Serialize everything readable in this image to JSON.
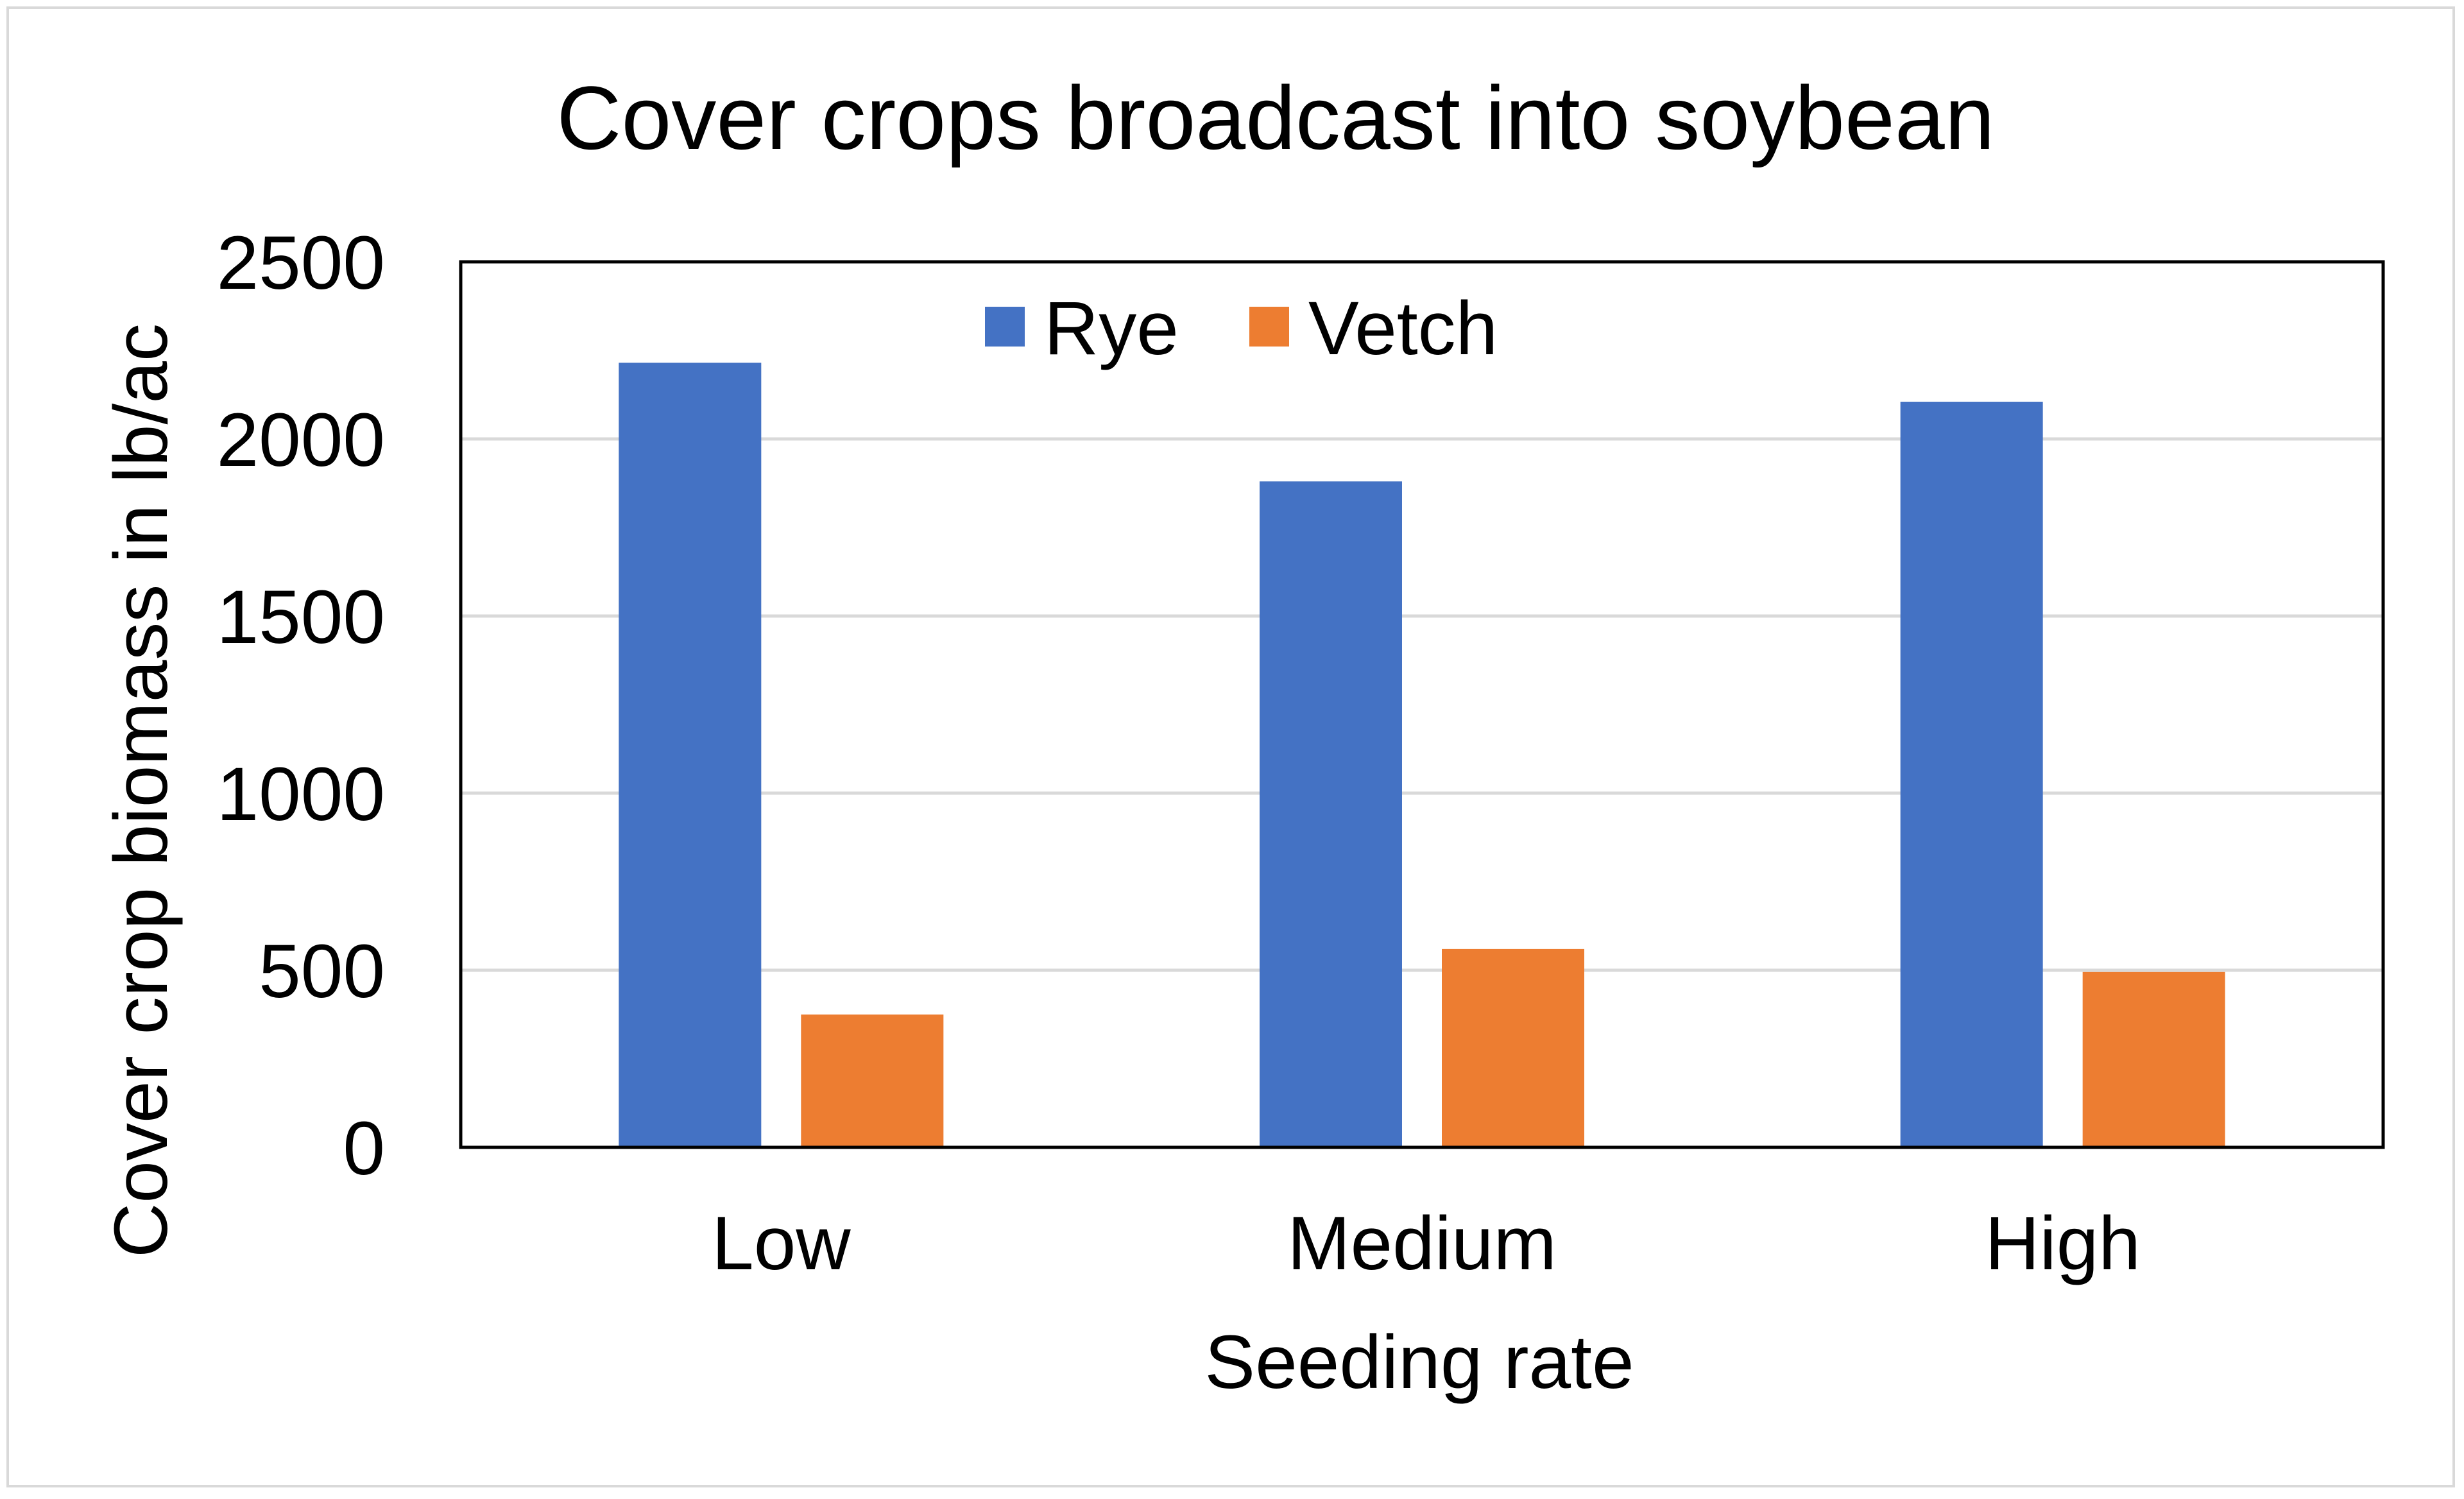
{
  "chart_data": {
    "type": "bar",
    "title": "Cover crops broadcast into soybean",
    "xlabel": "Seeding rate",
    "ylabel": "Cover crop biomass in lb/ac",
    "categories": [
      "Low",
      "Medium",
      "High"
    ],
    "series": [
      {
        "name": "Rye",
        "color": "#4472c4",
        "values": [
          2215,
          1880,
          2105
        ]
      },
      {
        "name": "Vetch",
        "color": "#ed7d31",
        "values": [
          375,
          560,
          495
        ]
      }
    ],
    "ylim": [
      0,
      2500
    ],
    "yticks": [
      "0",
      "500",
      "1000",
      "1500",
      "2000",
      "2500"
    ],
    "grid": true,
    "legend_position": "top-center"
  }
}
